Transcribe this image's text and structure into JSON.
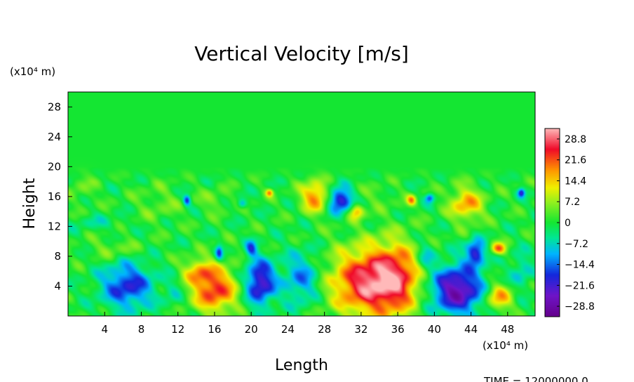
{
  "chart_data": {
    "type": "heatmap",
    "title": "Vertical Velocity [m/s]",
    "xlabel": "Length",
    "ylabel": "Height",
    "x_unit_label": "(x10⁴ m)",
    "y_unit_label": "(x10⁴ m)",
    "xlim": [
      0,
      51
    ],
    "ylim": [
      0,
      30
    ],
    "x_ticks": [
      "4",
      "8",
      "12",
      "16",
      "20",
      "24",
      "28",
      "32",
      "36",
      "40",
      "44",
      "48"
    ],
    "x_tick_values": [
      4,
      8,
      12,
      16,
      20,
      24,
      28,
      32,
      36,
      40,
      44,
      48
    ],
    "y_ticks": [
      "4",
      "8",
      "12",
      "16",
      "20",
      "24",
      "28"
    ],
    "y_tick_values": [
      4,
      8,
      12,
      16,
      20,
      24,
      28
    ],
    "colorbar": {
      "min": -32.4,
      "max": 32.4,
      "labels": [
        "28.8",
        "21.6",
        "14.4",
        "7.2",
        "0",
        "−7.2",
        "−14.4",
        "−21.6",
        "−28.8"
      ],
      "label_values": [
        28.8,
        21.6,
        14.4,
        7.2,
        0,
        -7.2,
        -14.4,
        -21.6,
        -28.8
      ]
    },
    "background_value": 0,
    "features": [
      {
        "x": 32.5,
        "y": 4.5,
        "rx": 3.8,
        "ry": 4.5,
        "value": 27
      },
      {
        "x": 36.0,
        "y": 5.0,
        "rx": 2.6,
        "ry": 4.8,
        "value": 20
      },
      {
        "x": 16.0,
        "y": 3.5,
        "rx": 2.4,
        "ry": 3.0,
        "value": 24
      },
      {
        "x": 14.2,
        "y": 6.0,
        "rx": 1.6,
        "ry": 1.6,
        "value": 13
      },
      {
        "x": 42.5,
        "y": 3.5,
        "rx": 2.8,
        "ry": 3.2,
        "value": -28
      },
      {
        "x": 6.5,
        "y": 4.0,
        "rx": 2.8,
        "ry": 3.0,
        "value": -19
      },
      {
        "x": 21.0,
        "y": 4.5,
        "rx": 1.6,
        "ry": 3.0,
        "value": -24
      },
      {
        "x": 25.5,
        "y": 5.0,
        "rx": 2.0,
        "ry": 3.5,
        "value": -13
      },
      {
        "x": 27.0,
        "y": 16.0,
        "rx": 1.5,
        "ry": 2.0,
        "value": 20
      },
      {
        "x": 43.5,
        "y": 15.0,
        "rx": 1.8,
        "ry": 2.2,
        "value": 17
      },
      {
        "x": 29.7,
        "y": 15.5,
        "rx": 1.3,
        "ry": 1.6,
        "value": -24
      },
      {
        "x": 31.5,
        "y": 14.0,
        "rx": 0.8,
        "ry": 1.0,
        "value": 16
      },
      {
        "x": 47.0,
        "y": 2.5,
        "rx": 1.5,
        "ry": 1.8,
        "value": 17
      },
      {
        "x": 44.5,
        "y": 8.5,
        "rx": 1.0,
        "ry": 1.6,
        "value": -22
      },
      {
        "x": 5.0,
        "y": 9.0,
        "rx": 2.8,
        "ry": 1.4,
        "value": 5
      },
      {
        "x": 10.0,
        "y": 15.0,
        "rx": 2.5,
        "ry": 2.5,
        "value": 4
      },
      {
        "x": 16.0,
        "y": 15.5,
        "rx": 1.5,
        "ry": 1.5,
        "value": 5
      },
      {
        "x": 1.5,
        "y": 17.0,
        "rx": 1.5,
        "ry": 2.0,
        "value": 4
      },
      {
        "x": 13.0,
        "y": 15.5,
        "rx": 0.4,
        "ry": 0.7,
        "value": -18
      },
      {
        "x": 19.0,
        "y": 15.0,
        "rx": 0.5,
        "ry": 0.6,
        "value": -12
      },
      {
        "x": 22.0,
        "y": 16.5,
        "rx": 0.4,
        "ry": 0.5,
        "value": 16
      },
      {
        "x": 37.5,
        "y": 15.5,
        "rx": 0.5,
        "ry": 0.7,
        "value": 16
      },
      {
        "x": 39.5,
        "y": 15.8,
        "rx": 0.5,
        "ry": 0.6,
        "value": -16
      },
      {
        "x": 49.5,
        "y": 16.5,
        "rx": 0.4,
        "ry": 0.6,
        "value": -18
      },
      {
        "x": 47.0,
        "y": 9.0,
        "rx": 0.8,
        "ry": 0.8,
        "value": 20
      },
      {
        "x": 20.0,
        "y": 9.0,
        "rx": 0.6,
        "ry": 1.2,
        "value": -14
      },
      {
        "x": 16.5,
        "y": 8.5,
        "rx": 0.4,
        "ry": 1.0,
        "value": -16
      },
      {
        "x": 34.0,
        "y": 16.0,
        "rx": 2.0,
        "ry": 1.5,
        "value": 3
      },
      {
        "x": 3.0,
        "y": 12.5,
        "rx": 3.0,
        "ry": 1.0,
        "value": -4
      },
      {
        "x": 49.5,
        "y": 6.0,
        "rx": 1.2,
        "ry": 2.5,
        "value": -8
      },
      {
        "x": 11.5,
        "y": 3.0,
        "rx": 1.0,
        "ry": 2.0,
        "value": -5
      },
      {
        "x": 39.0,
        "y": 8.0,
        "rx": 1.0,
        "ry": 2.0,
        "value": -9
      }
    ],
    "annotation": "TIME = 12000000.0"
  }
}
